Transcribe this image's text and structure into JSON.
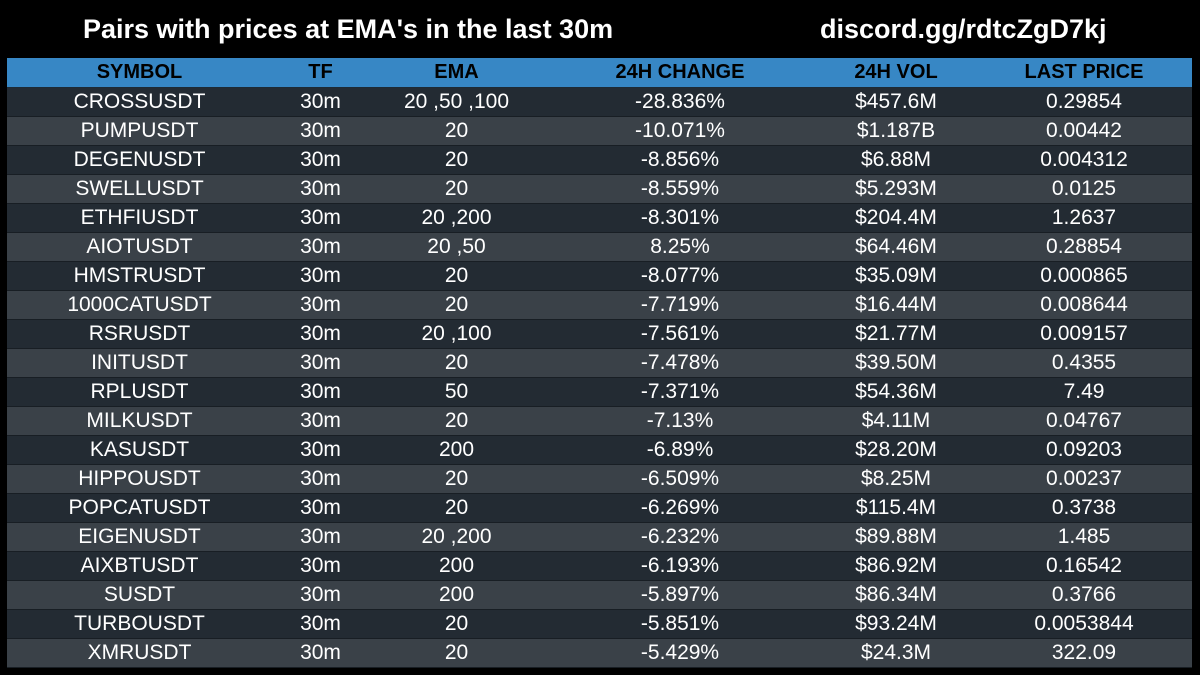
{
  "header": {
    "title": "Pairs with prices at EMA's in the last 30m",
    "discord": "discord.gg/rdtcZgD7kj"
  },
  "colors": {
    "background": "#000000",
    "header_row": "#3787c5",
    "row_dark": "#232b33",
    "row_light": "#3a4148"
  },
  "table": {
    "columns": [
      "SYMBOL",
      "TF",
      "EMA",
      "24H CHANGE",
      "24H VOL",
      "LAST PRICE"
    ],
    "rows": [
      [
        "CROSSUSDT",
        "30m",
        "20 ,50 ,100",
        "-28.836%",
        "$457.6M",
        "0.29854"
      ],
      [
        "PUMPUSDT",
        "30m",
        "20",
        "-10.071%",
        "$1.187B",
        "0.00442"
      ],
      [
        "DEGENUSDT",
        "30m",
        "20",
        "-8.856%",
        "$6.88M",
        "0.004312"
      ],
      [
        "SWELLUSDT",
        "30m",
        "20",
        "-8.559%",
        "$5.293M",
        "0.0125"
      ],
      [
        "ETHFIUSDT",
        "30m",
        "20 ,200",
        "-8.301%",
        "$204.4M",
        "1.2637"
      ],
      [
        "AIOTUSDT",
        "30m",
        "20 ,50",
        "8.25%",
        "$64.46M",
        "0.28854"
      ],
      [
        "HMSTRUSDT",
        "30m",
        "20",
        "-8.077%",
        "$35.09M",
        "0.000865"
      ],
      [
        "1000CATUSDT",
        "30m",
        "20",
        "-7.719%",
        "$16.44M",
        "0.008644"
      ],
      [
        "RSRUSDT",
        "30m",
        "20 ,100",
        "-7.561%",
        "$21.77M",
        "0.009157"
      ],
      [
        "INITUSDT",
        "30m",
        "20",
        "-7.478%",
        "$39.50M",
        "0.4355"
      ],
      [
        "RPLUSDT",
        "30m",
        "50",
        "-7.371%",
        "$54.36M",
        "7.49"
      ],
      [
        "MILKUSDT",
        "30m",
        "20",
        "-7.13%",
        "$4.11M",
        "0.04767"
      ],
      [
        "KASUSDT",
        "30m",
        "200",
        "-6.89%",
        "$28.20M",
        "0.09203"
      ],
      [
        "HIPPOUSDT",
        "30m",
        "20",
        "-6.509%",
        "$8.25M",
        "0.00237"
      ],
      [
        "POPCATUSDT",
        "30m",
        "20",
        "-6.269%",
        "$115.4M",
        "0.3738"
      ],
      [
        "EIGENUSDT",
        "30m",
        "20 ,200",
        "-6.232%",
        "$89.88M",
        "1.485"
      ],
      [
        "AIXBTUSDT",
        "30m",
        "200",
        "-6.193%",
        "$86.92M",
        "0.16542"
      ],
      [
        "SUSDT",
        "30m",
        "200",
        "-5.897%",
        "$86.34M",
        "0.3766"
      ],
      [
        "TURBOUSDT",
        "30m",
        "20",
        "-5.851%",
        "$93.24M",
        "0.0053844"
      ],
      [
        "XMRUSDT",
        "30m",
        "20",
        "-5.429%",
        "$24.3M",
        "322.09"
      ]
    ]
  }
}
